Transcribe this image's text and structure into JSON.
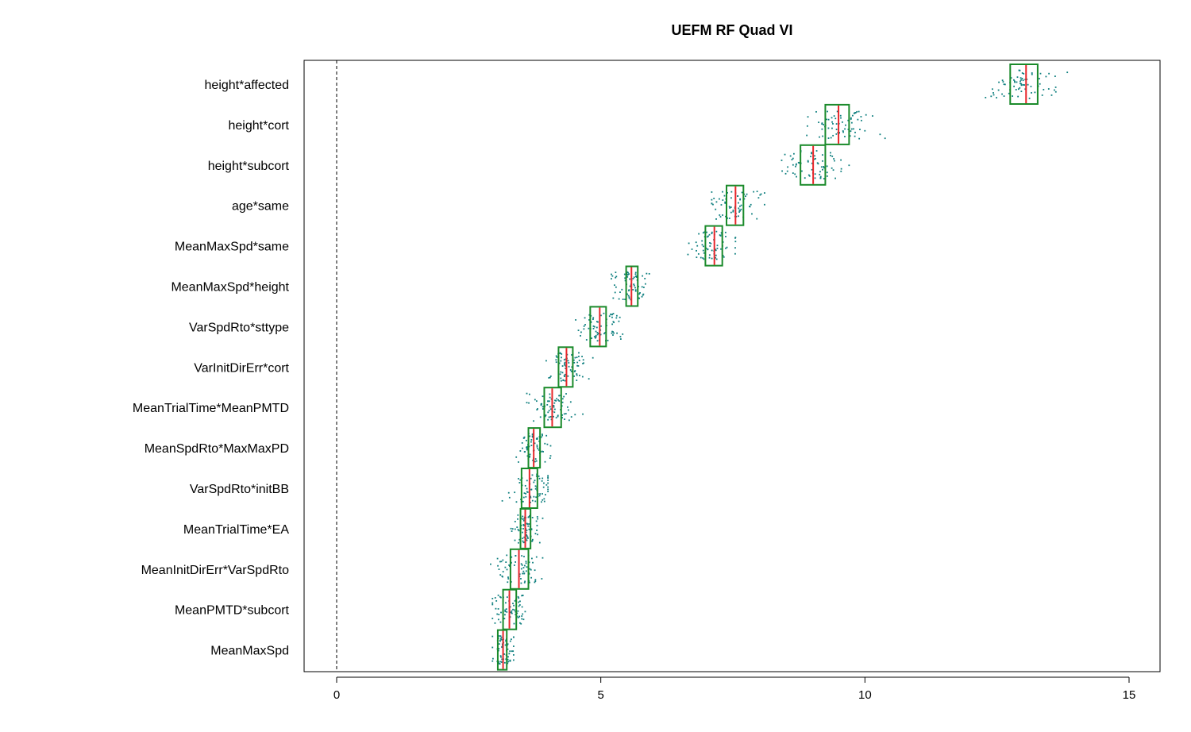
{
  "chart_data": {
    "type": "boxplot",
    "title": "UEFM RF Quad VI",
    "xlabel": "",
    "ylabel": "",
    "xlim": [
      -0.6,
      15.6
    ],
    "x_ticks": [
      0,
      5,
      10,
      15
    ],
    "reference_line": 0,
    "grid": false,
    "legend": "none",
    "colors": {
      "box": "#1a8a2a",
      "median": "#e8262a",
      "points": "#0e7f7f",
      "axis": "#000000"
    },
    "categories": [
      "height*affected",
      "height*cort",
      "height*subcort",
      "age*same",
      "MeanMaxSpd*same",
      "MeanMaxSpd*height",
      "VarSpdRto*sttype",
      "VarInitDirErr*cort",
      "MeanTrialTime*MeanPMTD",
      "MeanSpdRto*MaxMaxPD",
      "VarSpdRto*initBB",
      "MeanTrialTime*EA",
      "MeanInitDirErr*VarSpdRto",
      "MeanPMTD*subcort",
      "MeanMaxSpd"
    ],
    "boxes": [
      {
        "q1": 12.75,
        "median": 13.05,
        "q3": 13.27,
        "min": 11.95,
        "max": 14.05
      },
      {
        "q1": 9.25,
        "median": 9.5,
        "q3": 9.7,
        "min": 8.9,
        "max": 10.8
      },
      {
        "q1": 8.78,
        "median": 9.02,
        "q3": 9.25,
        "min": 8.2,
        "max": 9.7
      },
      {
        "q1": 7.38,
        "median": 7.55,
        "q3": 7.7,
        "min": 7.1,
        "max": 8.1
      },
      {
        "q1": 6.98,
        "median": 7.15,
        "q3": 7.3,
        "min": 6.65,
        "max": 7.55
      },
      {
        "q1": 5.48,
        "median": 5.58,
        "q3": 5.7,
        "min": 5.2,
        "max": 6.05
      },
      {
        "q1": 4.8,
        "median": 4.98,
        "q3": 5.1,
        "min": 4.5,
        "max": 5.5
      },
      {
        "q1": 4.2,
        "median": 4.35,
        "q3": 4.47,
        "min": 3.9,
        "max": 4.85
      },
      {
        "q1": 3.93,
        "median": 4.08,
        "q3": 4.25,
        "min": 3.6,
        "max": 4.8
      },
      {
        "q1": 3.63,
        "median": 3.73,
        "q3": 3.85,
        "min": 3.4,
        "max": 4.05
      },
      {
        "q1": 3.5,
        "median": 3.65,
        "q3": 3.8,
        "min": 3.1,
        "max": 4.0
      },
      {
        "q1": 3.48,
        "median": 3.57,
        "q3": 3.67,
        "min": 3.3,
        "max": 3.9
      },
      {
        "q1": 3.29,
        "median": 3.45,
        "q3": 3.63,
        "min": 2.9,
        "max": 3.9
      },
      {
        "q1": 3.15,
        "median": 3.27,
        "q3": 3.4,
        "min": 2.95,
        "max": 3.65
      },
      {
        "q1": 3.05,
        "median": 3.15,
        "q3": 3.22,
        "min": 2.95,
        "max": 3.35
      }
    ]
  }
}
